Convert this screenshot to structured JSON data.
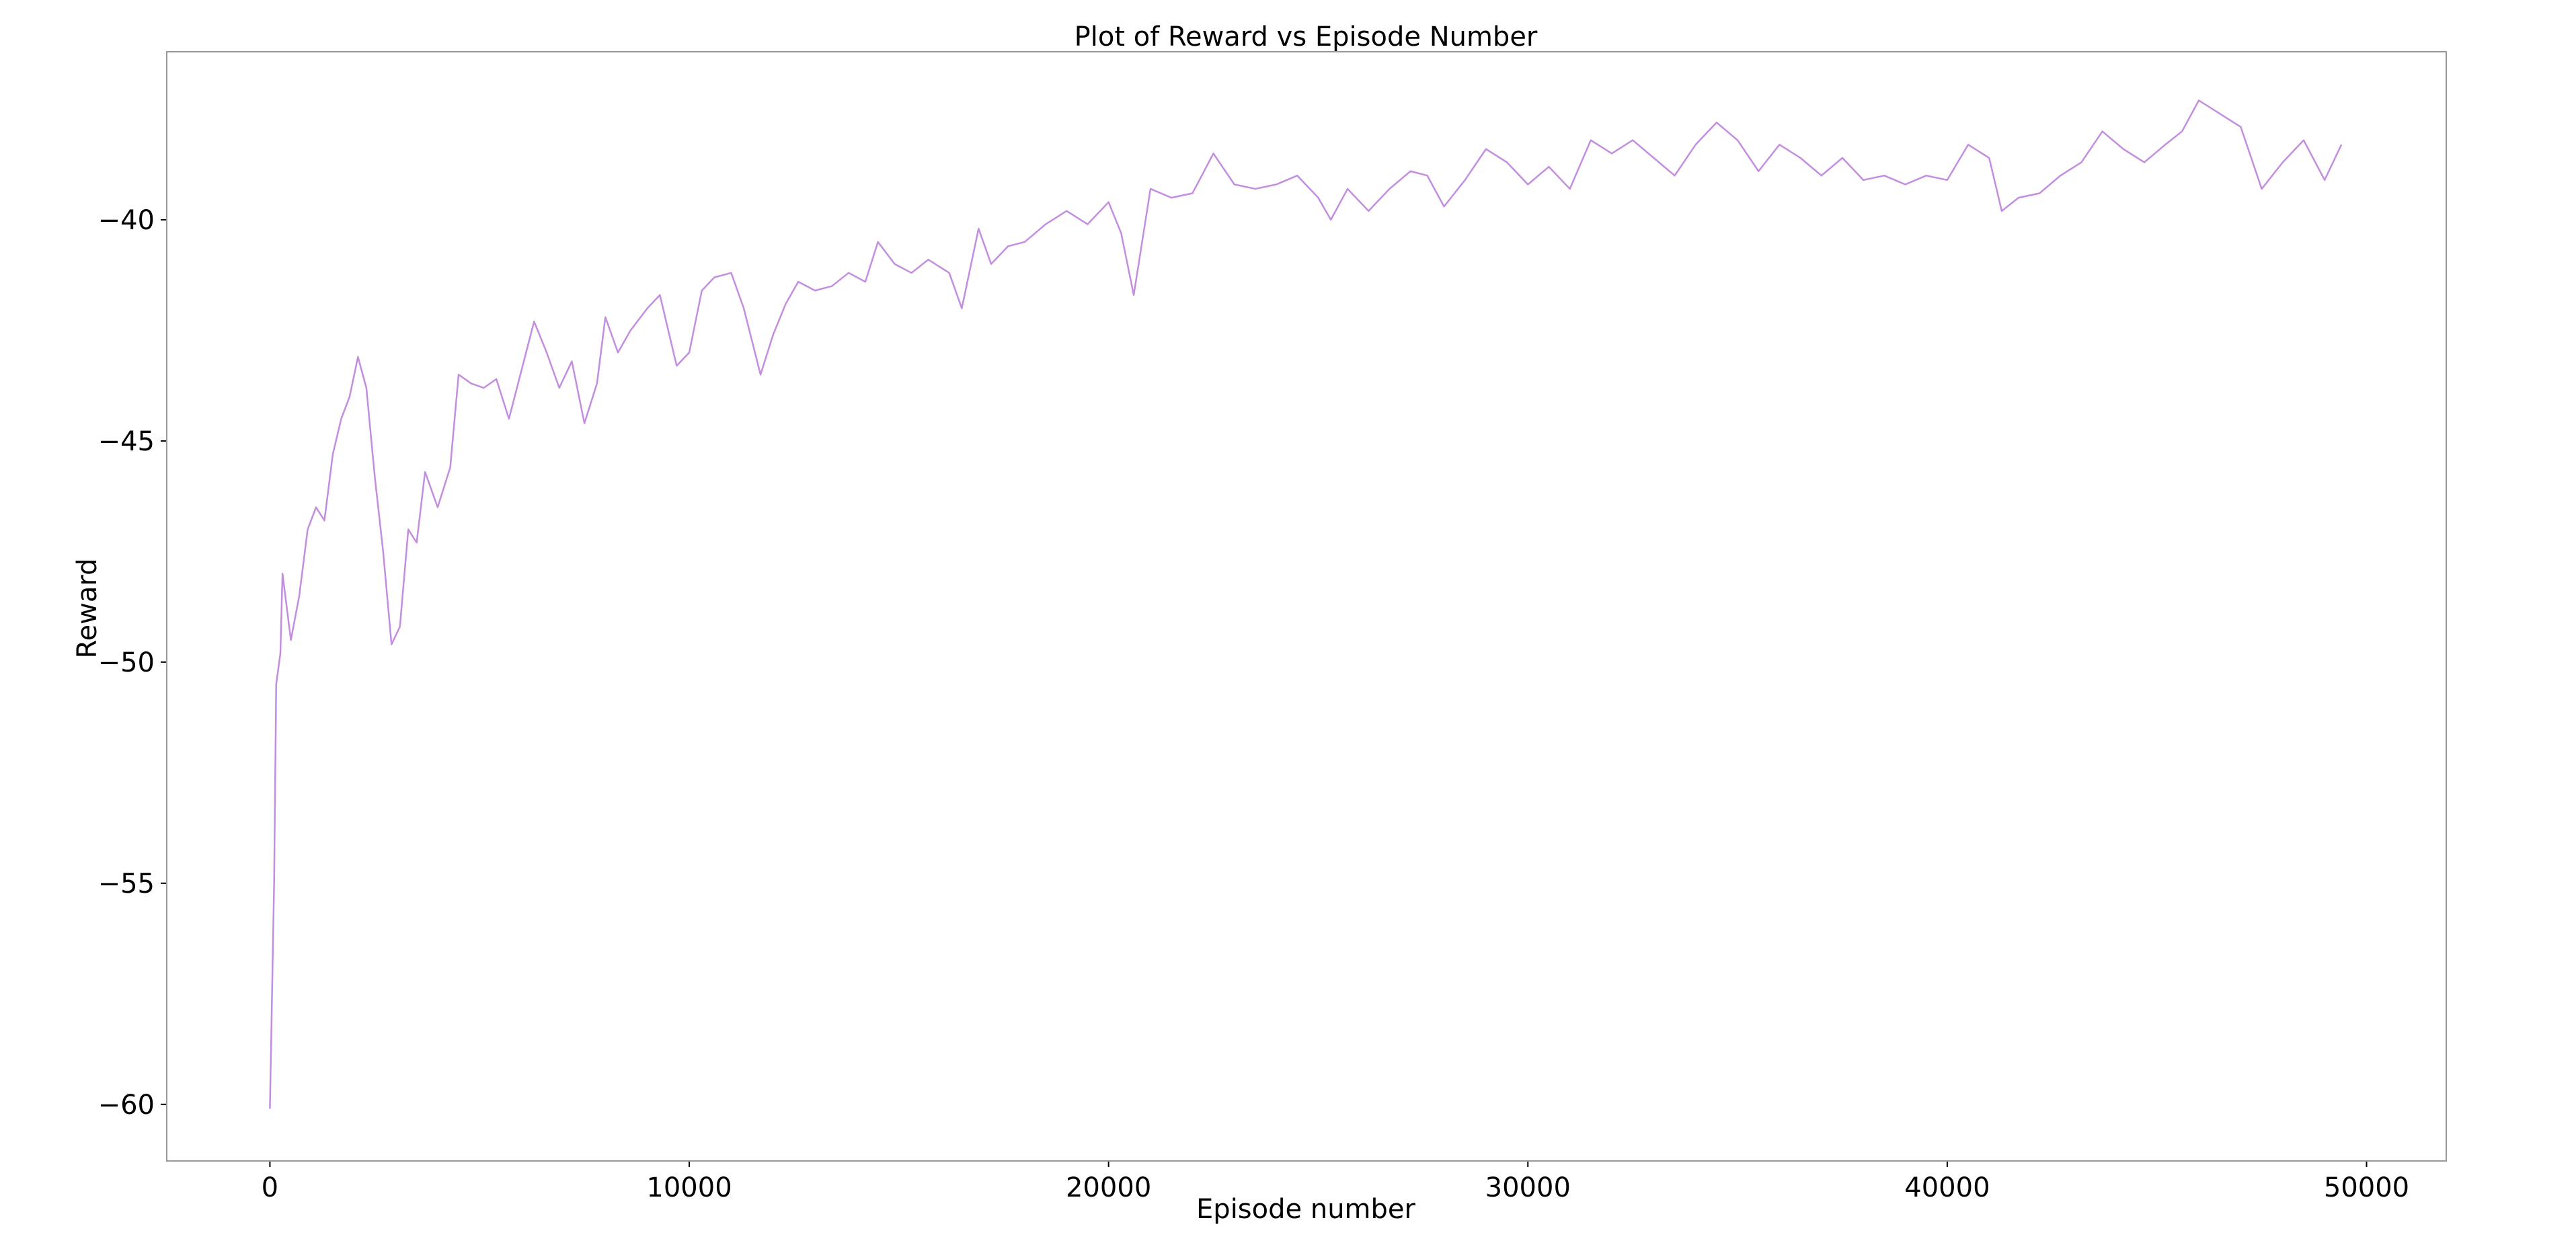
{
  "chart_data": {
    "type": "line",
    "title": "Plot of Reward vs Episode Number",
    "x_label": "Episode number",
    "y_label": "Reward",
    "xlim": [
      -2460,
      51900
    ],
    "ylim": [
      -61.28,
      -36.2
    ],
    "xticks": [
      0,
      10000,
      20000,
      30000,
      40000,
      50000
    ],
    "yticks": [
      {
        "value": -60,
        "label": "−60"
      },
      {
        "value": -55,
        "label": "−55"
      },
      {
        "value": -50,
        "label": "−50"
      },
      {
        "value": -45,
        "label": "−45"
      },
      {
        "value": -40,
        "label": "−40"
      }
    ],
    "grid": false,
    "x": [
      0,
      100,
      150,
      250,
      300,
      500,
      700,
      900,
      1100,
      1300,
      1500,
      1700,
      1900,
      2100,
      2300,
      2500,
      2700,
      2900,
      3100,
      3300,
      3500,
      3700,
      4000,
      4300,
      4500,
      4800,
      5100,
      5400,
      5700,
      6000,
      6300,
      6600,
      6900,
      7200,
      7500,
      7800,
      8000,
      8300,
      8600,
      9000,
      9300,
      9700,
      10000,
      10300,
      10600,
      11000,
      11300,
      11700,
      12000,
      12300,
      12600,
      13000,
      13400,
      13800,
      14200,
      14500,
      14900,
      15300,
      15700,
      16200,
      16500,
      16900,
      17200,
      17600,
      18000,
      18500,
      19000,
      19500,
      20000,
      20300,
      20600,
      21000,
      21500,
      22000,
      22500,
      23000,
      23500,
      24000,
      24500,
      25000,
      25300,
      25700,
      26200,
      26700,
      27200,
      27600,
      28000,
      28500,
      29000,
      29500,
      30000,
      30500,
      31000,
      31500,
      32000,
      32500,
      33000,
      33500,
      34000,
      34500,
      35000,
      35500,
      36000,
      36500,
      37000,
      37500,
      38000,
      38500,
      39000,
      39500,
      40000,
      40500,
      41000,
      41300,
      41700,
      42200,
      42700,
      43200,
      43700,
      44200,
      44700,
      45200,
      45600,
      46000,
      46500,
      47000,
      47500,
      48000,
      48500,
      49000,
      49400
    ],
    "series": [
      {
        "name": "Reward",
        "color": "#c38ee0",
        "values": [
          -60.1,
          -55,
          -50.5,
          -49.8,
          -48.0,
          -49.5,
          -48.5,
          -47.0,
          -46.5,
          -46.8,
          -45.3,
          -44.5,
          -44.0,
          -43.1,
          -43.8,
          -45.8,
          -47.5,
          -49.6,
          -49.2,
          -47.0,
          -47.3,
          -45.7,
          -46.5,
          -45.6,
          -43.5,
          -43.7,
          -43.8,
          -43.6,
          -44.5,
          -43.4,
          -42.3,
          -43.0,
          -43.8,
          -43.2,
          -44.6,
          -43.7,
          -42.2,
          -43.0,
          -42.5,
          -42.0,
          -41.7,
          -43.3,
          -43.0,
          -41.6,
          -41.3,
          -41.2,
          -42.0,
          -43.5,
          -42.6,
          -41.9,
          -41.4,
          -41.6,
          -41.5,
          -41.2,
          -41.4,
          -40.5,
          -41.0,
          -41.2,
          -40.9,
          -41.2,
          -42.0,
          -40.2,
          -41.0,
          -40.6,
          -40.5,
          -40.1,
          -39.8,
          -40.1,
          -39.6,
          -40.3,
          -41.7,
          -39.3,
          -39.5,
          -39.4,
          -38.5,
          -39.2,
          -39.3,
          -39.2,
          -39.0,
          -39.5,
          -40.0,
          -39.3,
          -39.8,
          -39.3,
          -38.9,
          -39.0,
          -39.7,
          -39.1,
          -38.4,
          -38.7,
          -39.2,
          -38.8,
          -39.3,
          -38.2,
          -38.5,
          -38.2,
          -38.6,
          -39.0,
          -38.3,
          -37.8,
          -38.2,
          -38.9,
          -38.3,
          -38.6,
          -39.0,
          -38.6,
          -39.1,
          -39.0,
          -39.2,
          -39.0,
          -39.1,
          -38.3,
          -38.6,
          -39.8,
          -39.5,
          -39.4,
          -39.0,
          -38.7,
          -38.0,
          -38.4,
          -38.7,
          -38.3,
          -38.0,
          -37.3,
          -37.6,
          -37.9,
          -39.3,
          -38.7,
          -38.2,
          -39.1,
          -38.3
        ]
      }
    ]
  }
}
